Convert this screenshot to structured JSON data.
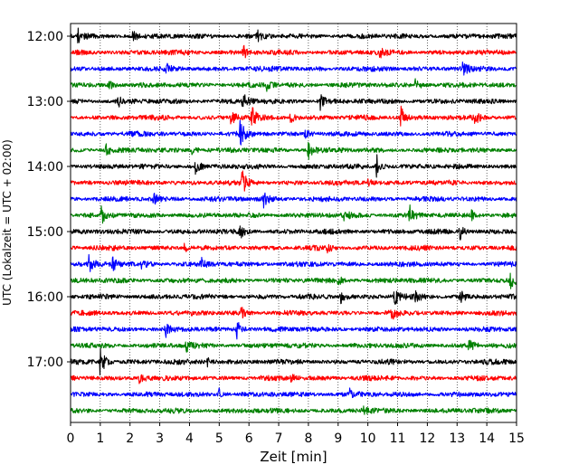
{
  "chart_data": {
    "type": "line",
    "subtype": "helicorder",
    "title": "",
    "xlabel": "Zeit  [min]",
    "ylabel": "UTC (Lokalzeit = UTC + 02:00)",
    "xlim": [
      0,
      15
    ],
    "x_ticks": [
      "0",
      "1",
      "2",
      "3",
      "4",
      "5",
      "6",
      "7",
      "8",
      "9",
      "10",
      "11",
      "12",
      "13",
      "14",
      "15"
    ],
    "y_tick_labels": [
      "12:00",
      "13:00",
      "14:00",
      "15:00",
      "16:00",
      "17:00"
    ],
    "grid": "vertical-dotted",
    "trace_colors": [
      "#000000",
      "#ff0000",
      "#0000ff",
      "#008000"
    ],
    "traces": [
      {
        "start": "12:00",
        "color": "#000000",
        "events": [
          {
            "t": 0.25,
            "amp": 1.6
          },
          {
            "t": 2.1,
            "amp": 0.9
          },
          {
            "t": 6.3,
            "amp": 0.8
          }
        ]
      },
      {
        "start": "12:15",
        "color": "#ff0000",
        "events": [
          {
            "t": 5.8,
            "amp": 1.3
          },
          {
            "t": 10.4,
            "amp": 0.8
          }
        ]
      },
      {
        "start": "12:30",
        "color": "#0000ff",
        "events": [
          {
            "t": 3.2,
            "amp": 0.8
          },
          {
            "t": 13.2,
            "amp": 1.2
          }
        ]
      },
      {
        "start": "12:45",
        "color": "#008000",
        "events": [
          {
            "t": 1.3,
            "amp": 1.1
          },
          {
            "t": 6.6,
            "amp": 1.2
          },
          {
            "t": 11.6,
            "amp": 1.4
          }
        ]
      },
      {
        "start": "13:00",
        "color": "#000000",
        "events": [
          {
            "t": 1.6,
            "amp": 1.0
          },
          {
            "t": 5.8,
            "amp": 2.0
          },
          {
            "t": 8.4,
            "amp": 1.4
          }
        ]
      },
      {
        "start": "13:15",
        "color": "#ff0000",
        "events": [
          {
            "t": 5.4,
            "amp": 1.5
          },
          {
            "t": 6.1,
            "amp": 1.8
          },
          {
            "t": 7.4,
            "amp": 1.2
          },
          {
            "t": 11.1,
            "amp": 2.2
          },
          {
            "t": 13.6,
            "amp": 1.3
          }
        ]
      },
      {
        "start": "13:30",
        "color": "#0000ff",
        "events": [
          {
            "t": 5.7,
            "amp": 2.4
          },
          {
            "t": 7.9,
            "amp": 0.9
          }
        ]
      },
      {
        "start": "13:45",
        "color": "#008000",
        "events": [
          {
            "t": 1.2,
            "amp": 1.0
          },
          {
            "t": 4.1,
            "amp": 1.0
          },
          {
            "t": 8.0,
            "amp": 2.0
          }
        ]
      },
      {
        "start": "14:00",
        "color": "#000000",
        "events": [
          {
            "t": 4.2,
            "amp": 1.1
          },
          {
            "t": 10.3,
            "amp": 2.0
          }
        ]
      },
      {
        "start": "14:15",
        "color": "#ff0000",
        "events": [
          {
            "t": 5.75,
            "amp": 2.8
          },
          {
            "t": 10.0,
            "amp": 0.8
          }
        ]
      },
      {
        "start": "14:30",
        "color": "#0000ff",
        "events": [
          {
            "t": 2.8,
            "amp": 1.0
          },
          {
            "t": 6.5,
            "amp": 1.5
          }
        ]
      },
      {
        "start": "14:45",
        "color": "#008000",
        "events": [
          {
            "t": 1.05,
            "amp": 1.7
          },
          {
            "t": 9.2,
            "amp": 1.0
          },
          {
            "t": 11.4,
            "amp": 1.7
          },
          {
            "t": 13.5,
            "amp": 1.2
          }
        ]
      },
      {
        "start": "15:00",
        "color": "#000000",
        "events": [
          {
            "t": 5.7,
            "amp": 1.1
          },
          {
            "t": 13.1,
            "amp": 1.5
          }
        ]
      },
      {
        "start": "15:15",
        "color": "#ff0000",
        "events": [
          {
            "t": 3.8,
            "amp": 0.9
          },
          {
            "t": 8.6,
            "amp": 0.8
          }
        ]
      },
      {
        "start": "15:30",
        "color": "#0000ff",
        "events": [
          {
            "t": 0.6,
            "amp": 1.7
          },
          {
            "t": 1.4,
            "amp": 1.5
          },
          {
            "t": 2.4,
            "amp": 1.1
          },
          {
            "t": 4.4,
            "amp": 0.9
          }
        ]
      },
      {
        "start": "15:45",
        "color": "#008000",
        "events": [
          {
            "t": 9.0,
            "amp": 0.8
          },
          {
            "t": 14.8,
            "amp": 1.5
          }
        ]
      },
      {
        "start": "16:00",
        "color": "#000000",
        "events": [
          {
            "t": 9.1,
            "amp": 1.4
          },
          {
            "t": 10.9,
            "amp": 1.8
          },
          {
            "t": 11.6,
            "amp": 1.2
          },
          {
            "t": 13.1,
            "amp": 1.2
          }
        ]
      },
      {
        "start": "16:15",
        "color": "#ff0000",
        "events": [
          {
            "t": 5.7,
            "amp": 1.3
          },
          {
            "t": 10.8,
            "amp": 1.4
          }
        ]
      },
      {
        "start": "16:30",
        "color": "#0000ff",
        "events": [
          {
            "t": 3.2,
            "amp": 1.2
          },
          {
            "t": 5.6,
            "amp": 1.8
          }
        ]
      },
      {
        "start": "16:45",
        "color": "#008000",
        "events": [
          {
            "t": 3.9,
            "amp": 0.9
          },
          {
            "t": 13.4,
            "amp": 1.0
          }
        ]
      },
      {
        "start": "17:00",
        "color": "#000000",
        "events": [
          {
            "t": 1.0,
            "amp": 2.8
          },
          {
            "t": 4.6,
            "amp": 0.8
          }
        ]
      },
      {
        "start": "17:15",
        "color": "#ff0000",
        "events": [
          {
            "t": 2.3,
            "amp": 1.6
          },
          {
            "t": 7.4,
            "amp": 0.8
          }
        ]
      },
      {
        "start": "17:30",
        "color": "#0000ff",
        "events": [
          {
            "t": 5.0,
            "amp": 1.1
          },
          {
            "t": 9.4,
            "amp": 0.9
          }
        ]
      },
      {
        "start": "17:45",
        "color": "#008000",
        "events": [
          {
            "t": 9.8,
            "amp": 1.2
          }
        ]
      }
    ]
  }
}
